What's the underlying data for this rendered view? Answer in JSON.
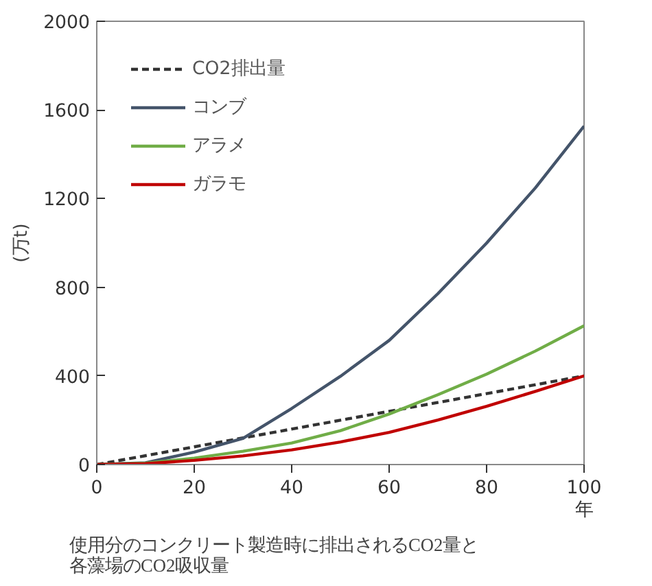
{
  "chart_data": {
    "type": "line",
    "title": "使用分のコンクリート製造時に排出されるCO2量と各藻場のCO2吸収量",
    "xlabel": "年",
    "ylabel": "(万t)",
    "x": [
      0,
      10,
      20,
      30,
      40,
      50,
      60,
      70,
      80,
      90,
      100
    ],
    "series": [
      {
        "name": "CO2排出量",
        "color": "#333333",
        "line_style": "dashed",
        "x": [
          0,
          100
        ],
        "values": [
          0,
          400
        ]
      },
      {
        "name": "コンブ",
        "color": "#44546a",
        "values": [
          0,
          8,
          56,
          118,
          253,
          398,
          560,
          771,
          999,
          1248,
          1527
        ]
      },
      {
        "name": "アラメ",
        "color": "#70ad47",
        "values": [
          0,
          6,
          29,
          60,
          97,
          153,
          228,
          315,
          408,
          512,
          626
        ]
      },
      {
        "name": "ガラモ",
        "color": "#c00000",
        "values": [
          0,
          4,
          19,
          39,
          66,
          102,
          145,
          201,
          263,
          330,
          400
        ]
      }
    ],
    "xlim": [
      0,
      100
    ],
    "ylim": [
      0,
      2000
    ],
    "xticks": [
      0,
      20,
      40,
      60,
      80,
      100
    ],
    "yticks": [
      0,
      400,
      800,
      1200,
      1600,
      2000
    ],
    "grid": false,
    "legend": "top left",
    "line_style": "solid"
  }
}
